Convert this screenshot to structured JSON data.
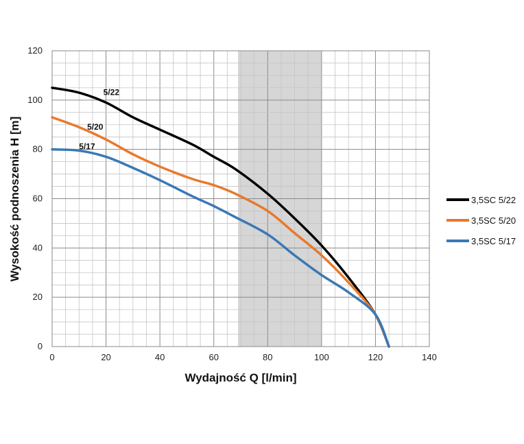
{
  "chart_data": {
    "type": "line",
    "xlabel": "Wydajność Q [l/min]",
    "ylabel": "Wysokość podnoszenia H [m]",
    "xlim": [
      0,
      140
    ],
    "ylim": [
      0,
      120
    ],
    "x_ticks": [
      0,
      20,
      40,
      60,
      80,
      100,
      120,
      140
    ],
    "y_ticks": [
      0,
      20,
      40,
      60,
      80,
      100,
      120
    ],
    "x_minor_step": 5,
    "y_minor_step": 5,
    "grid": true,
    "legend_position": "right",
    "shaded_range": {
      "x": [
        69,
        100
      ],
      "color": "#d6d6d6"
    },
    "series": [
      {
        "name": "3,5SC 5/22",
        "label": "5/22",
        "label_at": [
          19,
          102
        ],
        "color": "#000000",
        "points": [
          [
            0,
            105
          ],
          [
            10,
            103
          ],
          [
            20,
            99
          ],
          [
            30,
            93
          ],
          [
            40,
            88
          ],
          [
            52,
            82
          ],
          [
            60,
            77
          ],
          [
            68,
            72
          ],
          [
            80,
            62
          ],
          [
            90,
            52
          ],
          [
            100,
            41
          ],
          [
            110,
            28
          ],
          [
            120,
            13
          ],
          [
            125,
            0
          ]
        ]
      },
      {
        "name": "3,5SC 5/20",
        "label": "5/20",
        "label_at": [
          13,
          88
        ],
        "color": "#e8792b",
        "points": [
          [
            0,
            93
          ],
          [
            10,
            89
          ],
          [
            20,
            84
          ],
          [
            30,
            78
          ],
          [
            40,
            73
          ],
          [
            52,
            68
          ],
          [
            60,
            65.5
          ],
          [
            68,
            62
          ],
          [
            80,
            55
          ],
          [
            90,
            46
          ],
          [
            100,
            37
          ],
          [
            110,
            26
          ],
          [
            120,
            13
          ],
          [
            125,
            0
          ]
        ]
      },
      {
        "name": "3,5SC 5/17",
        "label": "5/17",
        "label_at": [
          10,
          80
        ],
        "color": "#3a78b5",
        "points": [
          [
            0,
            80
          ],
          [
            10,
            79.5
          ],
          [
            20,
            77
          ],
          [
            30,
            72.5
          ],
          [
            40,
            67.5
          ],
          [
            52,
            61
          ],
          [
            60,
            57
          ],
          [
            68,
            52.5
          ],
          [
            80,
            45.5
          ],
          [
            90,
            37
          ],
          [
            100,
            29
          ],
          [
            110,
            22
          ],
          [
            120,
            13
          ],
          [
            125,
            0
          ]
        ]
      }
    ]
  }
}
